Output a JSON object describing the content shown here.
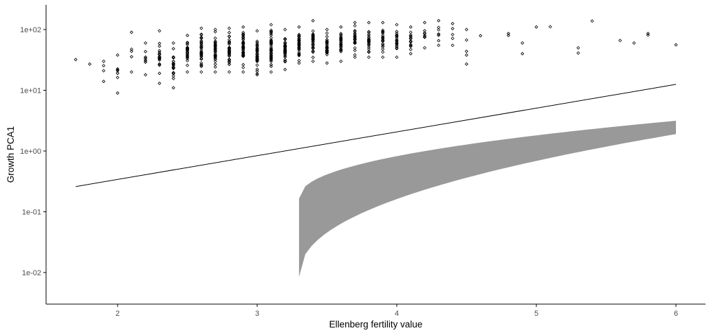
{
  "chart_data": {
    "type": "scatter",
    "title": "",
    "xlabel": "Ellenberg fertility value",
    "ylabel": "Growth PCA1",
    "xlim": [
      1.5,
      6.2
    ],
    "ylim": [
      0.0035,
      250
    ],
    "y_scale": "log10",
    "grid": false,
    "legend": "none",
    "x_ticks": [
      {
        "value": 2,
        "label": "2"
      },
      {
        "value": 3,
        "label": "3"
      },
      {
        "value": 4,
        "label": "4"
      },
      {
        "value": 5,
        "label": "5"
      },
      {
        "value": 6,
        "label": "6"
      }
    ],
    "y_ticks": [
      {
        "value": 100,
        "label": "1e+02"
      },
      {
        "value": 10,
        "label": "1e+01"
      },
      {
        "value": 1,
        "label": "1e+00"
      },
      {
        "value": 0.1,
        "label": "1e-01"
      },
      {
        "value": 0.01,
        "label": "1e-02"
      }
    ],
    "colors": {
      "points": "#000000",
      "line": "#000000",
      "band": "#999999",
      "axis": "#000000",
      "tick_label": "#4d4d4d"
    },
    "scatter_columns": [
      {
        "x": 1.7,
        "ymin": 32,
        "ymax": 32,
        "n": 1
      },
      {
        "x": 1.8,
        "ymin": 27,
        "ymax": 27,
        "n": 1
      },
      {
        "x": 1.9,
        "ymin": 14,
        "ymax": 30,
        "n": 4
      },
      {
        "x": 2.0,
        "ymin": 9,
        "ymax": 38,
        "n": 8
      },
      {
        "x": 2.1,
        "ymin": 20,
        "ymax": 90,
        "n": 5
      },
      {
        "x": 2.2,
        "ymin": 18,
        "ymax": 60,
        "n": 10
      },
      {
        "x": 2.3,
        "ymin": 13,
        "ymax": 95,
        "n": 22
      },
      {
        "x": 2.4,
        "ymin": 11,
        "ymax": 60,
        "n": 22
      },
      {
        "x": 2.5,
        "ymin": 20,
        "ymax": 80,
        "n": 30
      },
      {
        "x": 2.6,
        "ymin": 20,
        "ymax": 105,
        "n": 40
      },
      {
        "x": 2.7,
        "ymin": 20,
        "ymax": 100,
        "n": 35
      },
      {
        "x": 2.8,
        "ymin": 20,
        "ymax": 105,
        "n": 40
      },
      {
        "x": 2.9,
        "ymin": 20,
        "ymax": 110,
        "n": 45
      },
      {
        "x": 3.0,
        "ymin": 18,
        "ymax": 95,
        "n": 40
      },
      {
        "x": 3.1,
        "ymin": 20,
        "ymax": 120,
        "n": 45
      },
      {
        "x": 3.2,
        "ymin": 22,
        "ymax": 100,
        "n": 40
      },
      {
        "x": 3.3,
        "ymin": 28,
        "ymax": 110,
        "n": 35
      },
      {
        "x": 3.4,
        "ymin": 30,
        "ymax": 140,
        "n": 30
      },
      {
        "x": 3.5,
        "ymin": 28,
        "ymax": 100,
        "n": 30
      },
      {
        "x": 3.6,
        "ymin": 30,
        "ymax": 110,
        "n": 25
      },
      {
        "x": 3.7,
        "ymin": 35,
        "ymax": 130,
        "n": 25
      },
      {
        "x": 3.8,
        "ymin": 35,
        "ymax": 130,
        "n": 25
      },
      {
        "x": 3.9,
        "ymin": 35,
        "ymax": 130,
        "n": 20
      },
      {
        "x": 4.0,
        "ymin": 35,
        "ymax": 120,
        "n": 20
      },
      {
        "x": 4.1,
        "ymin": 40,
        "ymax": 110,
        "n": 15
      },
      {
        "x": 4.2,
        "ymin": 50,
        "ymax": 130,
        "n": 10
      },
      {
        "x": 4.3,
        "ymin": 55,
        "ymax": 140,
        "n": 8
      },
      {
        "x": 4.4,
        "ymin": 55,
        "ymax": 125,
        "n": 5
      },
      {
        "x": 4.5,
        "ymin": 38,
        "ymax": 100,
        "n": 4
      }
    ],
    "scatter_points": [
      {
        "x": 4.5,
        "y": 27
      },
      {
        "x": 4.6,
        "y": 79
      },
      {
        "x": 4.8,
        "y": 86
      },
      {
        "x": 4.8,
        "y": 80
      },
      {
        "x": 4.9,
        "y": 60
      },
      {
        "x": 4.9,
        "y": 40
      },
      {
        "x": 5.0,
        "y": 110
      },
      {
        "x": 5.1,
        "y": 111
      },
      {
        "x": 5.3,
        "y": 50
      },
      {
        "x": 5.3,
        "y": 41
      },
      {
        "x": 5.4,
        "y": 138
      },
      {
        "x": 5.6,
        "y": 66
      },
      {
        "x": 5.7,
        "y": 60
      },
      {
        "x": 5.8,
        "y": 86
      },
      {
        "x": 5.8,
        "y": 81
      },
      {
        "x": 6.0,
        "y": 56
      }
    ],
    "trend_line": {
      "x": [
        1.7,
        6.0
      ],
      "y": [
        0.26,
        12.5
      ]
    },
    "ribbon": {
      "x_start": 3.3,
      "x_end": 6.0,
      "lower_start": 0.0085,
      "lower_end": 1.9,
      "upper_start": 0.165,
      "upper_end": 3.15
    }
  }
}
